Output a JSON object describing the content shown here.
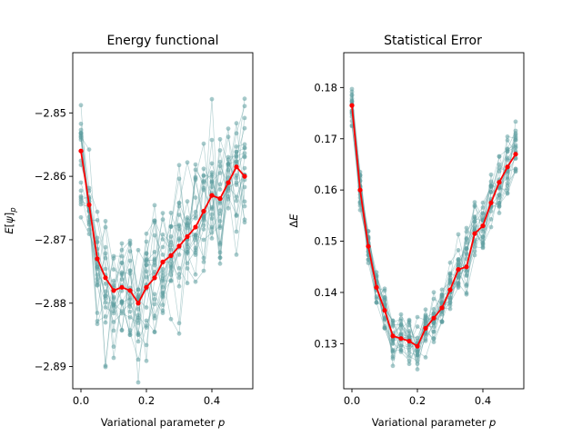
{
  "chart_data": [
    {
      "type": "line",
      "title": "Energy functional",
      "xlabel": "Variational parameter p",
      "ylabel": "E[ψ]_p",
      "xlim": [
        -0.025,
        0.525
      ],
      "ylim": [
        -2.8935,
        -2.8405
      ],
      "xticks": [
        0.0,
        0.2,
        0.4
      ],
      "xtick_labels": [
        "0.0",
        "0.2",
        "0.4"
      ],
      "yticks": [
        -2.89,
        -2.88,
        -2.87,
        -2.86,
        -2.85
      ],
      "ytick_labels": [
        "−2.89",
        "−2.88",
        "−2.87",
        "−2.86",
        "−2.85"
      ],
      "grid": false,
      "x": [
        0.0,
        0.025,
        0.05,
        0.075,
        0.1,
        0.125,
        0.15,
        0.175,
        0.2,
        0.225,
        0.25,
        0.275,
        0.3,
        0.325,
        0.35,
        0.375,
        0.4,
        0.425,
        0.45,
        0.475,
        0.5
      ],
      "mean": [
        -2.856,
        -2.8645,
        -2.873,
        -2.876,
        -2.878,
        -2.8775,
        -2.878,
        -2.88,
        -2.8775,
        -2.876,
        -2.8735,
        -2.8725,
        -2.871,
        -2.8695,
        -2.868,
        -2.8655,
        -2.863,
        -2.8635,
        -2.861,
        -2.8585,
        -2.86
      ],
      "spread": 0.0052,
      "sample_count": 20,
      "colors": {
        "mean": "#ff0000",
        "samples": "#5f9ea0"
      }
    },
    {
      "type": "line",
      "title": "Statistical Error",
      "xlabel": "Variational parameter p",
      "ylabel": "ΔE",
      "xlim": [
        -0.025,
        0.525
      ],
      "ylim": [
        0.1212,
        0.1868
      ],
      "xticks": [
        0.0,
        0.2,
        0.4
      ],
      "xtick_labels": [
        "0.0",
        "0.2",
        "0.4"
      ],
      "yticks": [
        0.13,
        0.14,
        0.15,
        0.16,
        0.17,
        0.18
      ],
      "ytick_labels": [
        "0.13",
        "0.14",
        "0.15",
        "0.16",
        "0.17",
        "0.18"
      ],
      "grid": false,
      "x": [
        0.0,
        0.025,
        0.05,
        0.075,
        0.1,
        0.125,
        0.15,
        0.175,
        0.2,
        0.225,
        0.25,
        0.275,
        0.3,
        0.325,
        0.35,
        0.375,
        0.4,
        0.425,
        0.45,
        0.475,
        0.5
      ],
      "mean": [
        0.1765,
        0.16,
        0.149,
        0.141,
        0.1365,
        0.1315,
        0.131,
        0.1305,
        0.1295,
        0.133,
        0.135,
        0.137,
        0.1405,
        0.1445,
        0.145,
        0.1515,
        0.153,
        0.1575,
        0.1615,
        0.1645,
        0.167
      ],
      "spread": 0.0032,
      "sample_count": 20,
      "colors": {
        "mean": "#ff0000",
        "samples": "#5f9ea0"
      }
    }
  ]
}
